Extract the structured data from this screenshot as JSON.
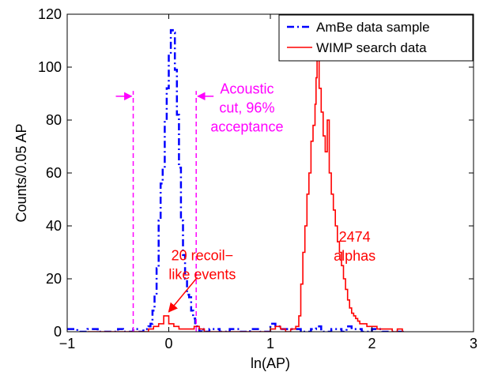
{
  "chart_data": {
    "type": "line",
    "title": "",
    "xlabel": "ln(AP)",
    "ylabel": "Counts/0.05 AP",
    "xlim": [
      -1,
      3
    ],
    "ylim": [
      0,
      120
    ],
    "xticks": [
      -1,
      0,
      1,
      2,
      3
    ],
    "xtick_labels": [
      "−1",
      "0",
      "1",
      "2",
      "3"
    ],
    "yticks": [
      0,
      20,
      40,
      60,
      80,
      100,
      120
    ],
    "ytick_labels": [
      "0",
      "20",
      "40",
      "60",
      "80",
      "100",
      "120"
    ],
    "grid": false,
    "legend_position": "top-right",
    "series": [
      {
        "name": "AmBe data sample",
        "color": "#0000ff",
        "style": "dash-dot step",
        "x": [
          -1.0,
          -0.9,
          -0.8,
          -0.7,
          -0.6,
          -0.5,
          -0.45,
          -0.4,
          -0.35,
          -0.3,
          -0.25,
          -0.2,
          -0.18,
          -0.16,
          -0.14,
          -0.12,
          -0.1,
          -0.08,
          -0.06,
          -0.04,
          -0.02,
          0.0,
          0.02,
          0.04,
          0.06,
          0.08,
          0.1,
          0.12,
          0.14,
          0.16,
          0.18,
          0.2,
          0.22,
          0.24,
          0.26,
          0.28,
          0.3,
          0.32,
          0.34,
          0.36,
          0.4,
          0.5,
          0.6,
          0.7,
          0.8,
          0.9,
          1.0,
          1.05,
          1.1,
          1.2,
          1.3,
          1.4,
          1.45,
          1.5,
          1.6,
          1.7,
          1.75,
          1.8,
          1.9,
          2.0,
          2.1,
          2.2,
          2.3
        ],
        "y": [
          1,
          0,
          1,
          0,
          0,
          1,
          0,
          0,
          1,
          0,
          1,
          2,
          3,
          8,
          14,
          24,
          42,
          56,
          62,
          80,
          92,
          105,
          114,
          113,
          99,
          82,
          62,
          42,
          29,
          20,
          14,
          13,
          8,
          5,
          2,
          1,
          0,
          1,
          0,
          0,
          1,
          0,
          1,
          0,
          1,
          0,
          3,
          2,
          1,
          1,
          0,
          1,
          2,
          0,
          1,
          0,
          2,
          1,
          0,
          1,
          0,
          0,
          0
        ]
      },
      {
        "name": "WIMP search data",
        "color": "#ff0000",
        "style": "solid step",
        "x": [
          -0.8,
          -0.6,
          -0.4,
          -0.3,
          -0.2,
          -0.15,
          -0.1,
          -0.05,
          0.0,
          0.05,
          0.1,
          0.15,
          0.2,
          0.25,
          0.3,
          0.35,
          0.4,
          0.5,
          0.6,
          0.7,
          0.8,
          0.9,
          1.0,
          1.05,
          1.1,
          1.15,
          1.2,
          1.25,
          1.28,
          1.3,
          1.32,
          1.34,
          1.36,
          1.38,
          1.4,
          1.42,
          1.44,
          1.45,
          1.46,
          1.48,
          1.5,
          1.52,
          1.54,
          1.56,
          1.58,
          1.6,
          1.62,
          1.64,
          1.66,
          1.68,
          1.7,
          1.72,
          1.74,
          1.76,
          1.78,
          1.8,
          1.82,
          1.84,
          1.86,
          1.88,
          1.9,
          1.95,
          2.0,
          2.05,
          2.1,
          2.15,
          2.2,
          2.25,
          2.3
        ],
        "y": [
          0,
          0,
          0,
          0,
          1,
          2,
          3,
          6,
          3,
          2,
          1,
          1,
          1,
          2,
          1,
          0,
          0,
          0,
          0,
          0,
          0,
          0,
          1,
          2,
          1,
          0,
          1,
          2,
          6,
          18,
          30,
          40,
          52,
          60,
          72,
          78,
          86,
          96,
          108,
          92,
          83,
          74,
          68,
          80,
          60,
          52,
          46,
          40,
          34,
          30,
          25,
          20,
          16,
          12,
          9,
          7,
          6,
          5,
          4,
          3,
          3,
          2,
          2,
          1,
          1,
          1,
          0,
          1,
          0
        ]
      }
    ],
    "cut_lines": {
      "color": "#ff00ff",
      "x": [
        -0.35,
        0.27
      ]
    },
    "annotations": [
      {
        "lines": [
          "Acoustic",
          "cut, 96%",
          "acceptance"
        ],
        "color": "#ff00ff",
        "x": 0.77,
        "y": 90
      },
      {
        "lines": [
          "20 recoil−",
          "like events"
        ],
        "color": "#ff0000",
        "x": 0.33,
        "y": 27
      },
      {
        "lines": [
          "2474",
          "alphas"
        ],
        "color": "#ff0000",
        "x": 1.83,
        "y": 34
      }
    ]
  }
}
